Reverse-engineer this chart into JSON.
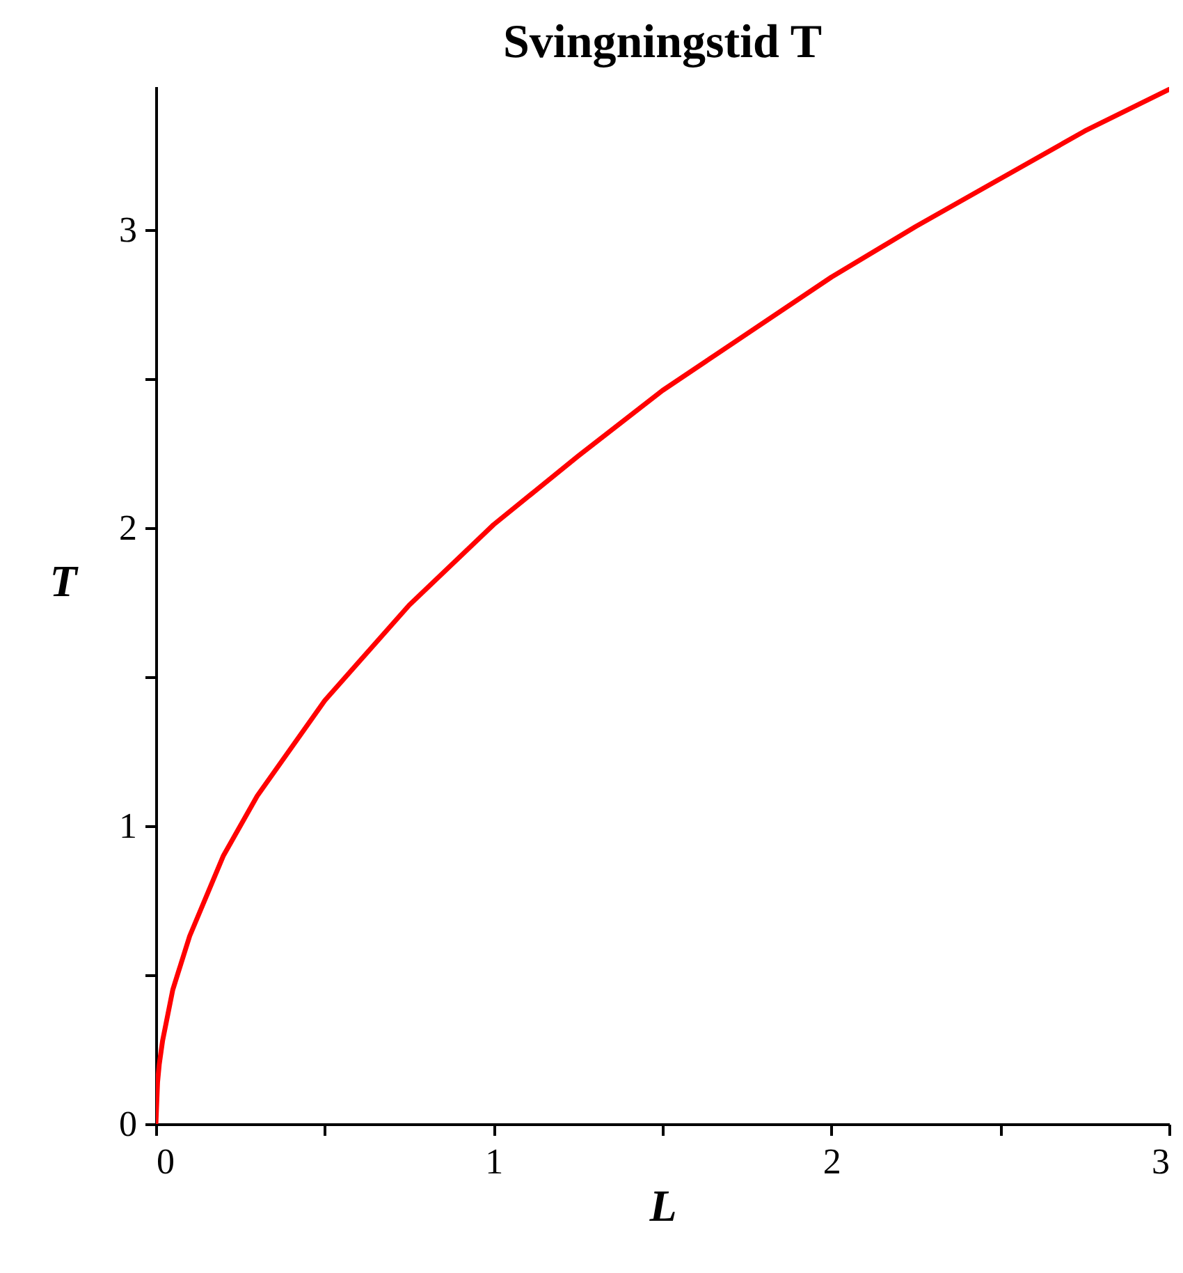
{
  "chart_data": {
    "type": "line",
    "title": "Svingningstid T",
    "xlabel": "L",
    "ylabel": "T",
    "xlim": [
      0,
      3
    ],
    "ylim": [
      0,
      3.48
    ],
    "xticks": [
      0,
      {
        "value": 0.5,
        "label": null
      },
      1,
      {
        "value": 1.5,
        "label": null
      },
      2,
      {
        "value": 2.5,
        "label": null
      },
      3
    ],
    "yticks": [
      0,
      {
        "value": 0.5,
        "label": null
      },
      1,
      {
        "value": 1.5,
        "label": null
      },
      2,
      {
        "value": 2.5,
        "label": null
      },
      3
    ],
    "grid": false,
    "marker": "none",
    "line_style": "solid",
    "series": [
      {
        "color": "#ff0000",
        "x": [
          0,
          0.005,
          0.01,
          0.02,
          0.05,
          0.1,
          0.2,
          0.3,
          0.5,
          0.75,
          1,
          1.25,
          1.5,
          1.75,
          2,
          2.25,
          2.5,
          2.75,
          3
        ],
        "values": [
          0,
          0.14,
          0.2,
          0.28,
          0.45,
          0.63,
          0.9,
          1.1,
          1.42,
          1.74,
          2.01,
          2.24,
          2.46,
          2.65,
          2.84,
          3.01,
          3.17,
          3.33,
          3.47
        ]
      }
    ]
  }
}
